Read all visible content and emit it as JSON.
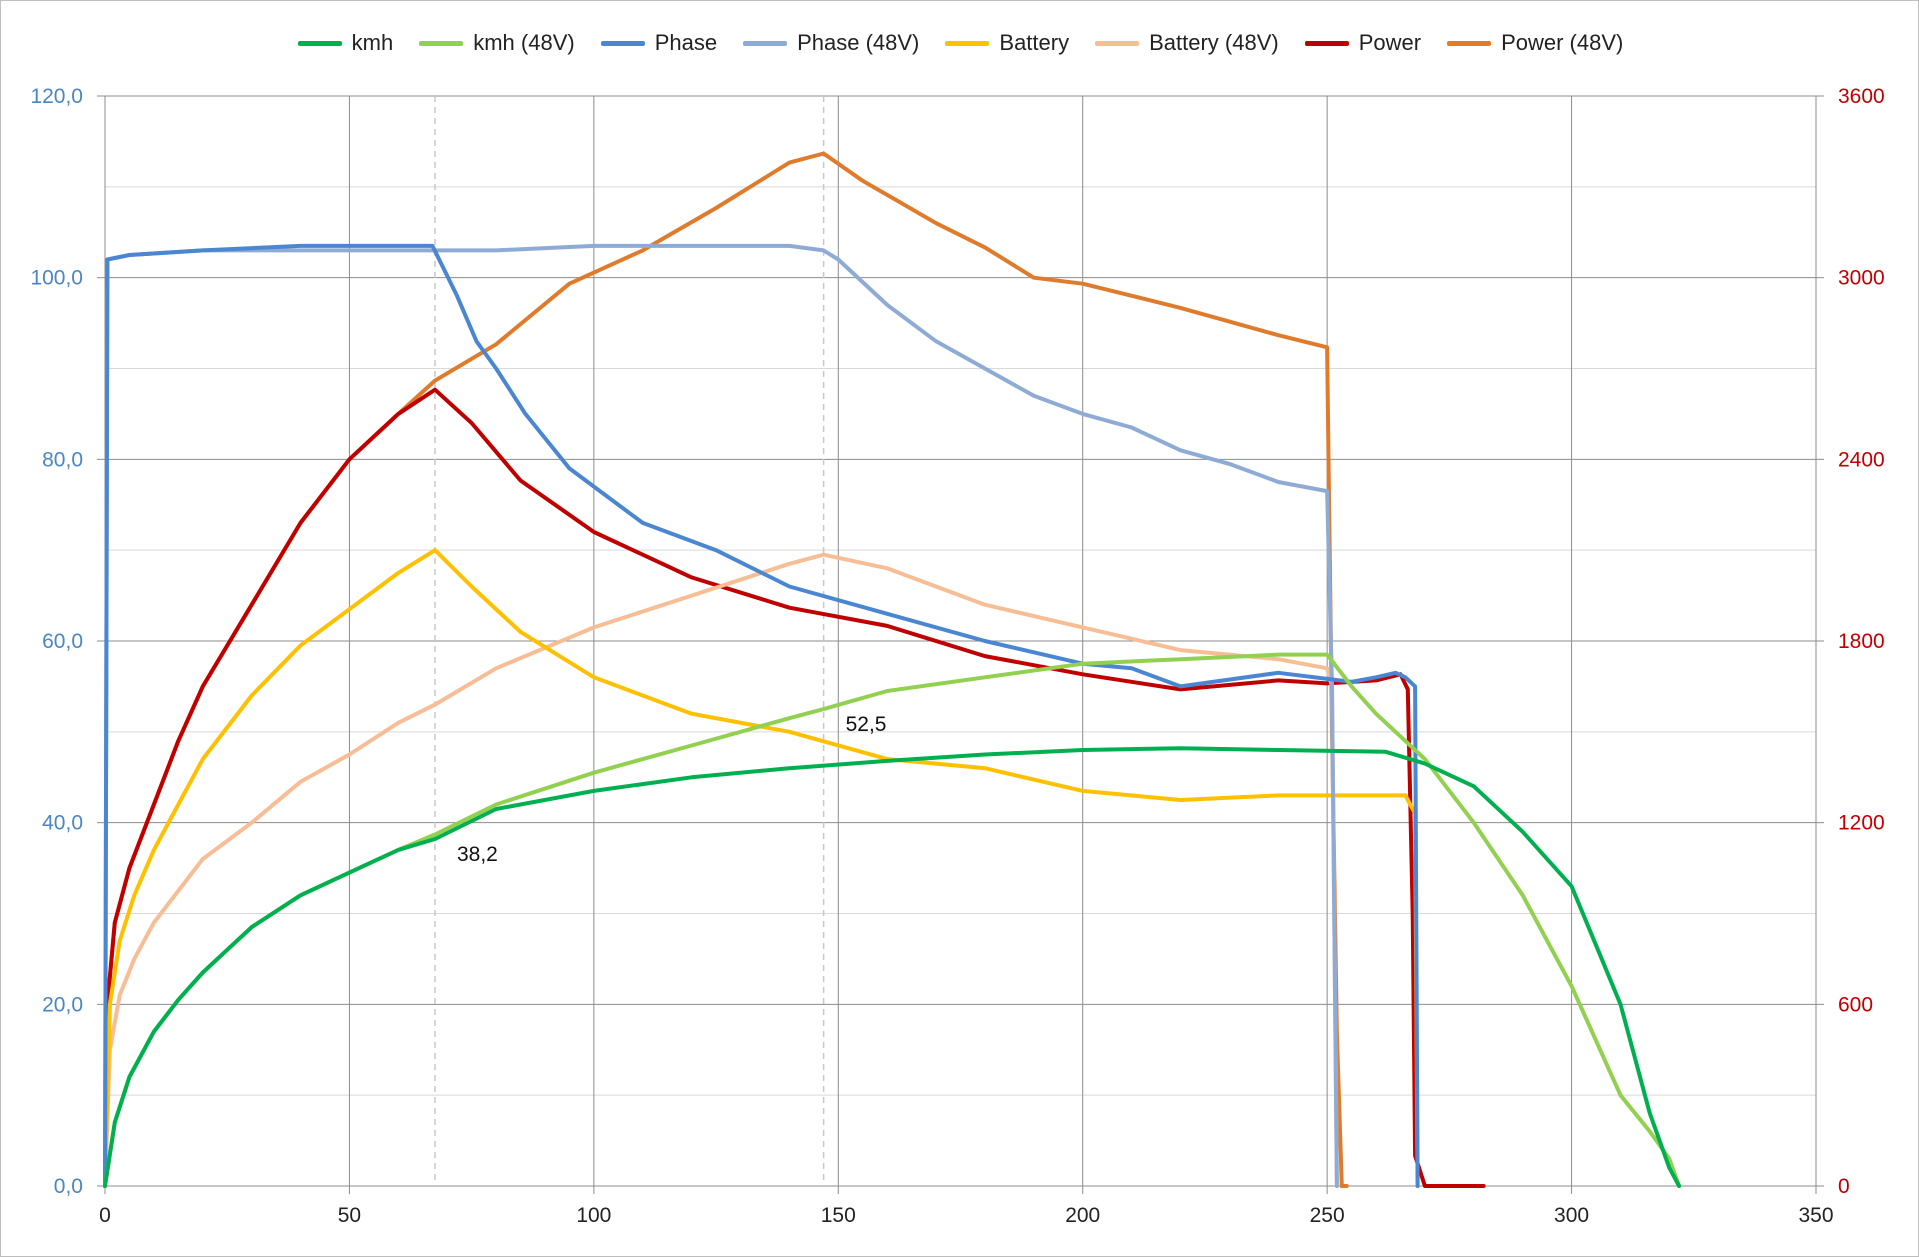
{
  "chart_data": {
    "type": "line",
    "title": "",
    "xlabel": "",
    "ylabel": "",
    "y2label": "",
    "xlim": [
      0,
      350
    ],
    "ylim": [
      0,
      120
    ],
    "y2lim": [
      0,
      3600
    ],
    "grid": true,
    "legend_position": "top",
    "x_ticks": [
      "0",
      "50",
      "100",
      "150",
      "200",
      "250",
      "300",
      "350"
    ],
    "y_ticks": [
      "0,0",
      "20,0",
      "40,0",
      "60,0",
      "80,0",
      "100,0",
      "120,0"
    ],
    "y2_ticks": [
      "0",
      "600",
      "1200",
      "1800",
      "2400",
      "3000",
      "3600"
    ],
    "left_axis_color": "#4a86c5",
    "right_axis_color": "#c00000",
    "annotations": [
      {
        "x": 67.5,
        "y": 38.2,
        "text": "38,2"
      },
      {
        "x": 147,
        "y": 52.5,
        "text": "52,5"
      }
    ],
    "reference_lines_x": [
      67.5,
      147
    ],
    "series": [
      {
        "name": "kmh",
        "axis": "left",
        "color": "#00b050",
        "x": [
          0,
          2,
          5,
          10,
          15,
          20,
          25,
          30,
          40,
          50,
          60,
          67.5,
          80,
          100,
          120,
          140,
          160,
          180,
          200,
          220,
          240,
          262,
          270,
          280,
          290,
          300,
          310,
          316,
          320,
          322
        ],
        "y": [
          0,
          7,
          12,
          17,
          20.5,
          23.5,
          26,
          28.5,
          32,
          34.5,
          37,
          38.2,
          41.5,
          43.5,
          45,
          46,
          46.8,
          47.5,
          48,
          48.2,
          48,
          47.8,
          46.5,
          44,
          39,
          33,
          20,
          8,
          2,
          0
        ]
      },
      {
        "name": "kmh (48V)",
        "axis": "left",
        "color": "#92d050",
        "x": [
          0,
          2,
          5,
          10,
          15,
          20,
          25,
          30,
          40,
          50,
          60,
          67.5,
          80,
          100,
          120,
          140,
          147,
          160,
          180,
          200,
          220,
          240,
          250,
          255,
          260,
          270,
          280,
          290,
          300,
          310,
          316,
          320,
          322
        ],
        "y": [
          0,
          7,
          12,
          17,
          20.5,
          23.5,
          26,
          28.5,
          32,
          34.5,
          37,
          38.7,
          42,
          45.5,
          48.5,
          51.5,
          52.5,
          54.5,
          56,
          57.5,
          58,
          58.5,
          58.5,
          55,
          52,
          47,
          40,
          32,
          22,
          10,
          6,
          3,
          0
        ]
      },
      {
        "name": "Phase",
        "axis": "left",
        "color": "#4a86d1",
        "x": [
          0,
          0.5,
          5,
          20,
          40,
          55,
          67,
          72,
          76,
          80,
          86,
          95,
          110,
          125,
          140,
          160,
          180,
          200,
          210,
          220,
          240,
          255,
          260,
          264,
          266,
          268,
          268.5
        ],
        "y": [
          0,
          102,
          102.5,
          103,
          103.5,
          103.5,
          103.5,
          98,
          93,
          90,
          85,
          79,
          73,
          70,
          66,
          63,
          60,
          57.5,
          57,
          55,
          56.5,
          55.5,
          56,
          56.5,
          56,
          55,
          0
        ]
      },
      {
        "name": "Phase (48V)",
        "axis": "left",
        "color": "#8eabd6",
        "x": [
          0,
          0.5,
          5,
          20,
          50,
          80,
          100,
          120,
          140,
          147,
          150,
          160,
          170,
          180,
          190,
          200,
          210,
          220,
          230,
          240,
          250,
          251,
          252
        ],
        "y": [
          0,
          102,
          102.5,
          103,
          103,
          103,
          103.5,
          103.5,
          103.5,
          103,
          102,
          97,
          93,
          90,
          87,
          85,
          83.5,
          81,
          79.5,
          77.5,
          76.5,
          55,
          0
        ]
      },
      {
        "name": "Battery",
        "axis": "left",
        "color": "#ffc000",
        "x": [
          0,
          1,
          3,
          6,
          10,
          15,
          20,
          30,
          40,
          50,
          60,
          67.5,
          75,
          85,
          100,
          120,
          140,
          160,
          180,
          200,
          220,
          240,
          260,
          266,
          268,
          268.5
        ],
        "y": [
          0,
          20,
          27,
          32,
          37,
          42,
          47,
          54,
          59.5,
          63.5,
          67.5,
          70,
          66,
          61,
          56,
          52,
          50,
          47,
          46,
          43.5,
          42.5,
          43,
          43,
          43,
          41,
          0
        ]
      },
      {
        "name": "Battery (48V)",
        "axis": "left",
        "color": "#f7bd95",
        "x": [
          0,
          1,
          3,
          6,
          10,
          15,
          20,
          30,
          40,
          50,
          60,
          67.5,
          80,
          100,
          120,
          140,
          147,
          160,
          180,
          200,
          220,
          240,
          250,
          251,
          252
        ],
        "y": [
          0,
          15,
          21,
          25,
          29,
          32.5,
          36,
          40,
          44.5,
          47.5,
          51,
          53,
          57,
          61.5,
          65,
          68.5,
          69.5,
          68,
          64,
          61.5,
          59,
          58,
          57,
          55,
          0
        ]
      },
      {
        "name": "Power",
        "axis": "right",
        "color": "#c00000",
        "x": [
          0,
          0.5,
          2,
          5,
          10,
          15,
          20,
          30,
          40,
          50,
          60,
          67.5,
          75,
          85,
          100,
          120,
          140,
          160,
          180,
          200,
          220,
          240,
          250,
          260,
          265,
          266.5,
          267.5,
          268,
          270,
          282
        ],
        "y": [
          0,
          600,
          870,
          1050,
          1260,
          1470,
          1650,
          1920,
          2190,
          2400,
          2550,
          2630,
          2520,
          2330,
          2160,
          2010,
          1910,
          1850,
          1750,
          1690,
          1640,
          1670,
          1660,
          1670,
          1690,
          1640,
          900,
          100,
          0,
          0
        ]
      },
      {
        "name": "Power (48V)",
        "axis": "right",
        "color": "#e07b2c",
        "x": [
          0,
          0.5,
          2,
          5,
          10,
          15,
          20,
          30,
          40,
          50,
          60,
          67.5,
          80,
          95,
          110,
          125,
          140,
          147,
          155,
          170,
          180,
          190,
          200,
          220,
          240,
          250,
          251,
          252,
          253,
          254
        ],
        "y": [
          0,
          600,
          870,
          1050,
          1260,
          1470,
          1650,
          1920,
          2190,
          2400,
          2550,
          2660,
          2780,
          2980,
          3090,
          3230,
          3380,
          3410,
          3320,
          3180,
          3100,
          3000,
          2980,
          2900,
          2810,
          2770,
          1500,
          500,
          0,
          0
        ]
      }
    ]
  }
}
